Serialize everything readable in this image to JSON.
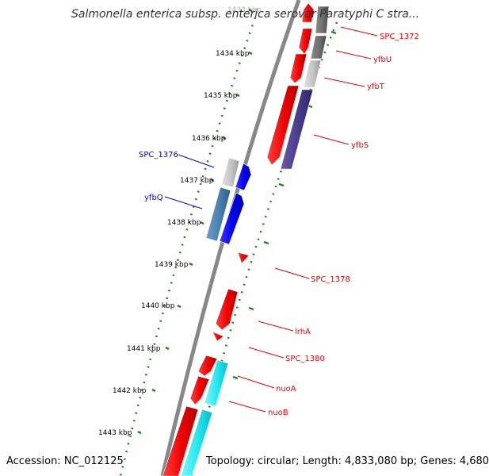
{
  "header": {
    "title": "Salmonella enterica subsp. enterica serovar Paratyphi C stra..."
  },
  "footer": {
    "accession": "Accession: NC_012125",
    "topology": "Topology: circular; Length: 4,833,080 bp; Genes: 4,680"
  },
  "ticks": [
    "1433 kbp",
    "1434 kbp",
    "1435 kbp",
    "1436 kbp",
    "1437 kbp",
    "1438 kbp",
    "1439 kbp",
    "1440 kbp",
    "1441 kbp",
    "1442 kbp",
    "1443 kbp"
  ],
  "gene_labels": {
    "spc_1372": "SPC_1372",
    "yfbu": "yfbU",
    "yfbt": "yfbT",
    "yfbs": "yfbS",
    "spc_1376": "SPC_1376",
    "yfbq": "yfbQ",
    "spc_1378": "SPC_1378",
    "lrha": "lrhA",
    "spc_1380": "SPC_1380",
    "nuoa": "nuoA",
    "nuob": "nuoB"
  },
  "colors": {
    "forward_strand": "#0000ee",
    "reverse_strand": "#ee0000",
    "tick_marks": "#228822",
    "backbone": "#888888"
  }
}
